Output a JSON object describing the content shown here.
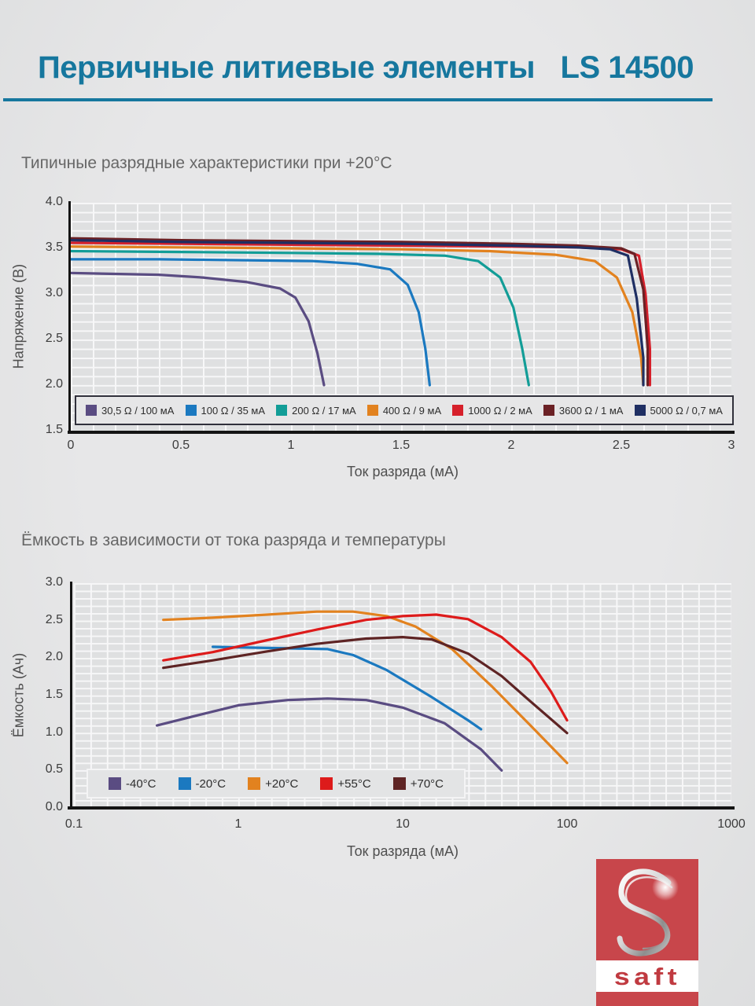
{
  "page": {
    "title_left": "Первичные литиевые элементы",
    "title_right": "LS 14500"
  },
  "colors": {
    "title_accent": "#16779e",
    "saft_red": "#c8464b",
    "saft_wordmark_red": "#c03a40",
    "axis_black": "#141414",
    "grid_white": "#f7f7f8",
    "background_gray": "#e4e4e5"
  },
  "chart_data": [
    {
      "type": "line",
      "title": "Типичные разрядные характеристики при +20°C",
      "xlabel": "Ток разряда (мА)",
      "ylabel": "Напряжение (В)",
      "x_scale": "linear",
      "xlim": [
        0,
        3
      ],
      "ylim": [
        1.5,
        4.0
      ],
      "x_ticks": [
        "0",
        "0.5",
        "1",
        "1.5",
        "2",
        "2.5",
        "3"
      ],
      "y_ticks": [
        "4.0",
        "3.5",
        "3.0",
        "2.5",
        "2.0",
        "1.5"
      ],
      "grid": true,
      "legend_position": "bottom-inside",
      "series": [
        {
          "name": "30,5 Ω / 100 мА",
          "color": "#5a4c82",
          "points": [
            [
              0,
              3.23
            ],
            [
              0.2,
              3.22
            ],
            [
              0.4,
              3.21
            ],
            [
              0.6,
              3.18
            ],
            [
              0.8,
              3.13
            ],
            [
              0.95,
              3.06
            ],
            [
              1.02,
              2.96
            ],
            [
              1.08,
              2.7
            ],
            [
              1.12,
              2.35
            ],
            [
              1.15,
              2.0
            ]
          ]
        },
        {
          "name": "100 Ω / 35 мА",
          "color": "#1b79c0",
          "points": [
            [
              0,
              3.38
            ],
            [
              0.4,
              3.38
            ],
            [
              0.8,
              3.37
            ],
            [
              1.1,
              3.36
            ],
            [
              1.3,
              3.33
            ],
            [
              1.45,
              3.27
            ],
            [
              1.53,
              3.1
            ],
            [
              1.58,
              2.8
            ],
            [
              1.61,
              2.4
            ],
            [
              1.63,
              2.0
            ]
          ]
        },
        {
          "name": "200 Ω / 17 мА",
          "color": "#129d97",
          "points": [
            [
              0,
              3.47
            ],
            [
              0.5,
              3.46
            ],
            [
              1.0,
              3.45
            ],
            [
              1.4,
              3.44
            ],
            [
              1.7,
              3.42
            ],
            [
              1.85,
              3.36
            ],
            [
              1.95,
              3.18
            ],
            [
              2.01,
              2.85
            ],
            [
              2.05,
              2.4
            ],
            [
              2.08,
              2.0
            ]
          ]
        },
        {
          "name": "400 Ω / 9 мА",
          "color": "#e2821f",
          "points": [
            [
              0,
              3.52
            ],
            [
              0.5,
              3.51
            ],
            [
              1.0,
              3.5
            ],
            [
              1.5,
              3.49
            ],
            [
              1.9,
              3.47
            ],
            [
              2.2,
              3.43
            ],
            [
              2.38,
              3.36
            ],
            [
              2.48,
              3.18
            ],
            [
              2.55,
              2.8
            ],
            [
              2.59,
              2.3
            ],
            [
              2.6,
              2.0
            ]
          ]
        },
        {
          "name": "1000 Ω / 2 мА",
          "color": "#d6202b",
          "points": [
            [
              0,
              3.56
            ],
            [
              0.5,
              3.55
            ],
            [
              1.0,
              3.54
            ],
            [
              1.5,
              3.53
            ],
            [
              2.0,
              3.52
            ],
            [
              2.3,
              3.51
            ],
            [
              2.5,
              3.49
            ],
            [
              2.58,
              3.42
            ],
            [
              2.61,
              3.0
            ],
            [
              2.63,
              2.4
            ],
            [
              2.63,
              2.0
            ]
          ]
        },
        {
          "name": "3600 Ω / 1 мА",
          "color": "#6b2125",
          "points": [
            [
              0,
              3.61
            ],
            [
              0.5,
              3.59
            ],
            [
              1.0,
              3.58
            ],
            [
              1.5,
              3.57
            ],
            [
              2.0,
              3.55
            ],
            [
              2.3,
              3.53
            ],
            [
              2.5,
              3.5
            ],
            [
              2.56,
              3.44
            ],
            [
              2.6,
              3.05
            ],
            [
              2.62,
              2.4
            ],
            [
              2.62,
              2.0
            ]
          ]
        },
        {
          "name": "5000 Ω / 0,7 мА",
          "color": "#1f2f63",
          "points": [
            [
              0,
              3.59
            ],
            [
              0.5,
              3.57
            ],
            [
              1.0,
              3.56
            ],
            [
              1.5,
              3.55
            ],
            [
              2.0,
              3.53
            ],
            [
              2.3,
              3.51
            ],
            [
              2.45,
              3.49
            ],
            [
              2.53,
              3.42
            ],
            [
              2.57,
              2.95
            ],
            [
              2.6,
              2.3
            ],
            [
              2.6,
              2.0
            ]
          ]
        }
      ]
    },
    {
      "type": "line",
      "title": "Ёмкость в зависимости от тока разряда и температуры",
      "xlabel": "Ток разряда (мА)",
      "ylabel": "Ёмкость (Ач)",
      "x_scale": "log",
      "xlim": [
        0.1,
        1000
      ],
      "ylim": [
        0.0,
        3.0
      ],
      "x_ticks": [
        "0.1",
        "1",
        "10",
        "100",
        "1000"
      ],
      "y_ticks": [
        "3.0",
        "2.5",
        "2.0",
        "1.5",
        "1.0",
        "0.5",
        "0.0"
      ],
      "grid": true,
      "legend_position": "bottom-inside",
      "series": [
        {
          "name": "-40°C",
          "color": "#5a4c82",
          "points": [
            [
              0.32,
              1.1
            ],
            [
              0.6,
              1.25
            ],
            [
              1,
              1.37
            ],
            [
              2,
              1.44
            ],
            [
              3.5,
              1.46
            ],
            [
              6,
              1.44
            ],
            [
              10,
              1.34
            ],
            [
              18,
              1.13
            ],
            [
              30,
              0.78
            ],
            [
              40,
              0.5
            ]
          ]
        },
        {
          "name": "-20°C",
          "color": "#1b79c0",
          "points": [
            [
              0.7,
              2.15
            ],
            [
              1.2,
              2.14
            ],
            [
              2,
              2.13
            ],
            [
              3.5,
              2.12
            ],
            [
              5,
              2.04
            ],
            [
              8,
              1.84
            ],
            [
              15,
              1.48
            ],
            [
              25,
              1.17
            ],
            [
              30,
              1.05
            ]
          ]
        },
        {
          "name": "+20°C",
          "color": "#e2821f",
          "points": [
            [
              0.35,
              2.51
            ],
            [
              0.7,
              2.54
            ],
            [
              1.5,
              2.58
            ],
            [
              3,
              2.62
            ],
            [
              5,
              2.62
            ],
            [
              8,
              2.56
            ],
            [
              12,
              2.42
            ],
            [
              20,
              2.12
            ],
            [
              35,
              1.62
            ],
            [
              60,
              1.1
            ],
            [
              100,
              0.6
            ]
          ]
        },
        {
          "name": "+55°C",
          "color": "#dd1b1b",
          "points": [
            [
              0.35,
              1.97
            ],
            [
              0.7,
              2.08
            ],
            [
              1.5,
              2.24
            ],
            [
              3,
              2.38
            ],
            [
              6,
              2.51
            ],
            [
              10,
              2.56
            ],
            [
              16,
              2.58
            ],
            [
              25,
              2.52
            ],
            [
              40,
              2.28
            ],
            [
              60,
              1.95
            ],
            [
              80,
              1.55
            ],
            [
              100,
              1.17
            ]
          ]
        },
        {
          "name": "+70°C",
          "color": "#5e2424",
          "points": [
            [
              0.35,
              1.87
            ],
            [
              0.7,
              1.97
            ],
            [
              1.5,
              2.09
            ],
            [
              3,
              2.19
            ],
            [
              6,
              2.26
            ],
            [
              10,
              2.28
            ],
            [
              15,
              2.25
            ],
            [
              25,
              2.06
            ],
            [
              40,
              1.76
            ],
            [
              60,
              1.42
            ],
            [
              100,
              1.0
            ]
          ]
        }
      ]
    }
  ],
  "logo": {
    "brand": "saft"
  }
}
